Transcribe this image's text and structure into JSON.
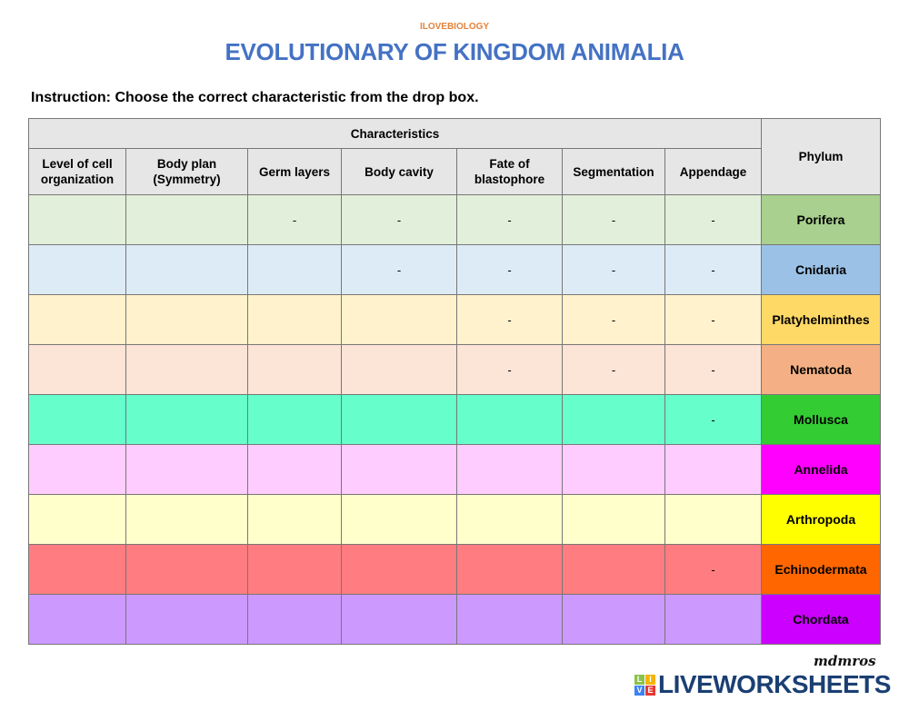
{
  "brand": "ILOVEBIOLOGY",
  "title": "EVOLUTIONARY OF KINGDOM ANIMALIA",
  "instruction": "Instruction: Choose the correct characteristic from the drop box.",
  "header": {
    "group": "Characteristics",
    "phylum": "Phylum",
    "columns": [
      "Level of cell organization",
      "Body plan (Symmetry)",
      "Germ layers",
      "Body cavity",
      "Fate of blastophore",
      "Segmentation",
      "Appendage"
    ]
  },
  "rows": [
    {
      "phylum": "Porifera",
      "row_color": "#e2efda",
      "phylum_color": "#a9d08e",
      "cells": [
        "",
        "",
        "-",
        "-",
        "-",
        "-",
        "-"
      ]
    },
    {
      "phylum": "Cnidaria",
      "row_color": "#ddebf7",
      "phylum_color": "#9bc2e6",
      "cells": [
        "",
        "",
        "",
        "-",
        "-",
        "-",
        "-"
      ]
    },
    {
      "phylum": "Platyhelminthes",
      "row_color": "#fff2cc",
      "phylum_color": "#ffd966",
      "cells": [
        "",
        "",
        "",
        "",
        "-",
        "-",
        "-"
      ]
    },
    {
      "phylum": "Nematoda",
      "row_color": "#fce4d6",
      "phylum_color": "#f4b084",
      "cells": [
        "",
        "",
        "",
        "",
        "-",
        "-",
        "-"
      ]
    },
    {
      "phylum": "Mollusca",
      "row_color": "#66ffcc",
      "phylum_color": "#33cc33",
      "cells": [
        "",
        "",
        "",
        "",
        "",
        "",
        "-"
      ]
    },
    {
      "phylum": "Annelida",
      "row_color": "#ffccff",
      "phylum_color": "#ff00ff",
      "cells": [
        "",
        "",
        "",
        "",
        "",
        "",
        ""
      ]
    },
    {
      "phylum": "Arthropoda",
      "row_color": "#ffffcc",
      "phylum_color": "#ffff00",
      "cells": [
        "",
        "",
        "",
        "",
        "",
        "",
        ""
      ]
    },
    {
      "phylum": "Echinodermata",
      "row_color": "#ff7c80",
      "phylum_color": "#ff6600",
      "cells": [
        "",
        "",
        "",
        "",
        "",
        "",
        "-"
      ]
    },
    {
      "phylum": "Chordata",
      "row_color": "#cc99ff",
      "phylum_color": "#cc00ff",
      "cells": [
        "",
        "",
        "",
        "",
        "",
        "",
        ""
      ]
    }
  ],
  "footer": {
    "signature": "mdmros",
    "logo_text": "LIVEWORKSHEETS",
    "logo_letters": [
      "L",
      "I",
      "V",
      "E"
    ]
  }
}
